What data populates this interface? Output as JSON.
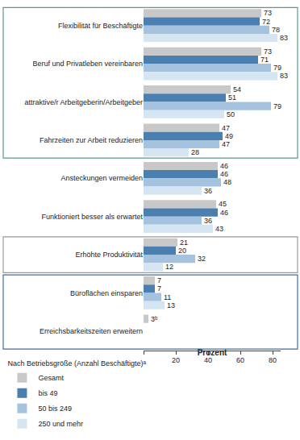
{
  "chart_data": {
    "type": "bar",
    "orientation": "horizontal",
    "categories": [
      "Flexibilität für Beschäftigte",
      "Beruf und Privatleben vereinbaren",
      "attraktive/r Arbeitgeberin/Arbeitgeber",
      "Fahrzeiten zur Arbeit reduzieren",
      "Ansteckungen vermeiden",
      "Funktioniert besser als erwartet",
      "Erhöhte Produktivität",
      "Büroflächen einsparen",
      "Erreichsbarkeitszeiten erweitern"
    ],
    "series": [
      {
        "name": "Gesamt",
        "color": "#c8c8c8",
        "values": [
          73,
          73,
          54,
          47,
          46,
          45,
          21,
          7,
          3
        ],
        "value_labels": [
          "73",
          "73",
          "54",
          "47",
          "46",
          "45",
          "21",
          "7",
          "3ᵇ"
        ]
      },
      {
        "name": "bis 49",
        "color": "#4a7fb0",
        "values": [
          72,
          71,
          51,
          49,
          46,
          46,
          20,
          7,
          null
        ]
      },
      {
        "name": "50 bis 249",
        "color": "#a5c3df",
        "values": [
          78,
          79,
          79,
          47,
          48,
          36,
          32,
          11,
          null
        ]
      },
      {
        "name": "250 und mehr",
        "color": "#d6e5f2",
        "values": [
          83,
          83,
          50,
          28,
          36,
          43,
          12,
          13,
          null
        ]
      }
    ],
    "x_label": "Prozent",
    "legend_title": "Nach Betriebsgröße (Anzahl Beschäftigte)ᵃ",
    "xlim": [
      0,
      85
    ],
    "xticks": [
      0,
      20,
      40,
      60,
      80
    ],
    "data_labels": true,
    "grid": false,
    "legend": "bottom"
  }
}
